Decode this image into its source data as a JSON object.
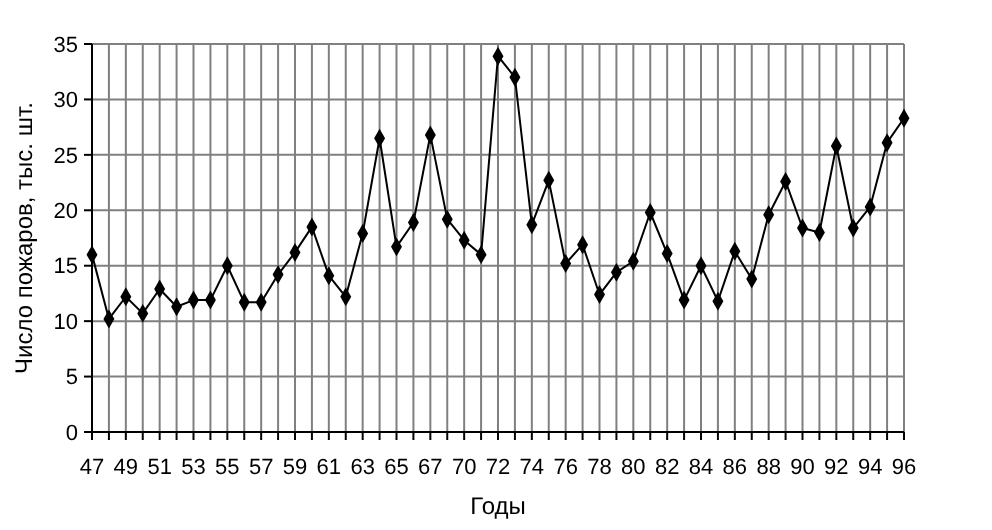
{
  "chart_data": {
    "type": "line",
    "xlabel": "Годы",
    "ylabel": "Число пожаров, тыс. шт.",
    "categories": [
      "47",
      null,
      "49",
      null,
      "51",
      null,
      "53",
      null,
      "55",
      null,
      "57",
      null,
      "59",
      null,
      "61",
      null,
      "63",
      null,
      "65",
      null,
      "67",
      null,
      "70",
      null,
      "72",
      null,
      "74",
      null,
      "76",
      null,
      "78",
      null,
      "80",
      null,
      "82",
      null,
      "84",
      null,
      "86",
      null,
      "88",
      null,
      "90",
      null,
      "92",
      null,
      "94",
      null,
      "96"
    ],
    "series": [
      {
        "color": "#000000",
        "values": [
          16.0,
          10.2,
          12.2,
          10.7,
          12.9,
          11.3,
          11.9,
          11.9,
          15.0,
          11.7,
          11.7,
          14.2,
          16.2,
          18.5,
          14.1,
          12.2,
          17.9,
          26.5,
          16.7,
          18.9,
          26.8,
          19.2,
          17.3,
          16.0,
          33.9,
          32.0,
          18.7,
          22.7,
          15.2,
          16.9,
          12.4,
          14.4,
          15.4,
          19.8,
          16.1,
          11.9,
          15.0,
          11.8,
          16.3,
          13.8,
          19.6,
          22.6,
          18.4,
          18.0,
          25.8,
          18.4,
          20.3,
          26.1,
          28.3
        ]
      }
    ],
    "ylim": [
      0,
      35
    ],
    "yticks": [
      0,
      5,
      10,
      15,
      20,
      25,
      30,
      35
    ],
    "grid": true,
    "marker": "diamond",
    "line_style": "solid"
  }
}
